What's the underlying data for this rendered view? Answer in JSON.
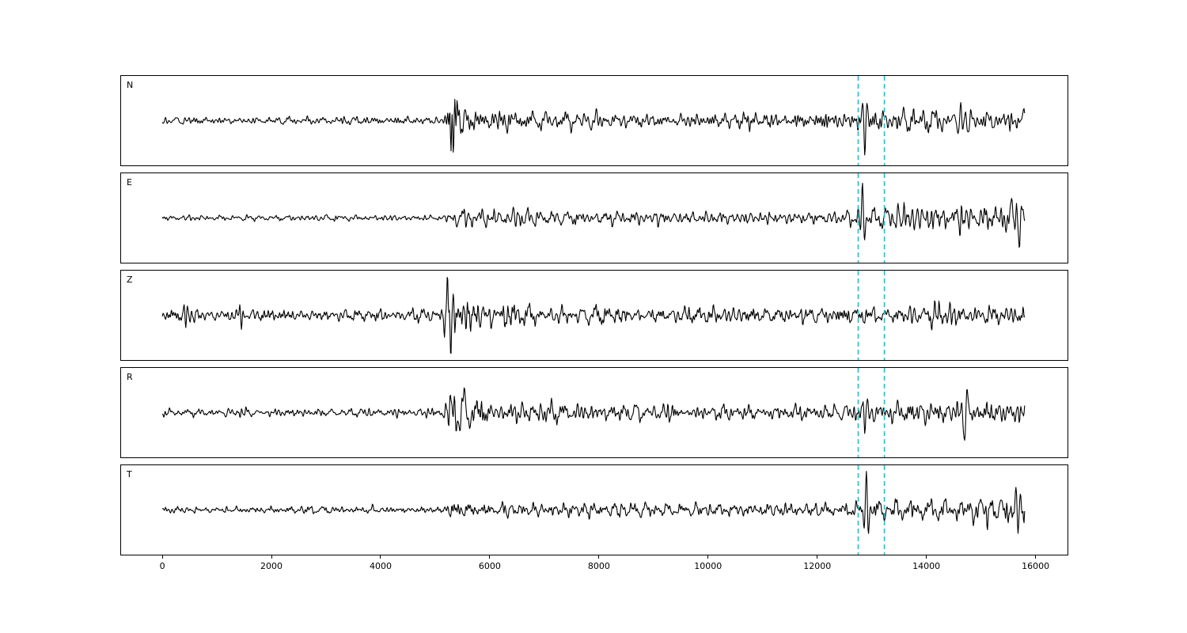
{
  "figure": {
    "background": "#ffffff",
    "trace_color": "#000000",
    "frame_color": "#000000",
    "window_line_color": "#26bdc7",
    "tick_color": "#000000"
  },
  "chart_data": {
    "type": "line",
    "title": "",
    "xlabel": "",
    "ylabel": "",
    "grid": false,
    "legend": null,
    "xlim": [
      -770,
      16600
    ],
    "x_start": 0,
    "x_end": 15800,
    "sample_step": 10,
    "xticks": [
      {
        "value": 0,
        "label": "0"
      },
      {
        "value": 2000,
        "label": "2000"
      },
      {
        "value": 4000,
        "label": "4000"
      },
      {
        "value": 6000,
        "label": "6000"
      },
      {
        "value": 8000,
        "label": "8000"
      },
      {
        "value": 10000,
        "label": "10000"
      },
      {
        "value": 12000,
        "label": "12000"
      },
      {
        "value": 14000,
        "label": "14000"
      },
      {
        "value": 16000,
        "label": "16000"
      }
    ],
    "vlines": [
      12750,
      13230
    ],
    "vline_style": "dashed",
    "panels": [
      {
        "label": "N",
        "seed": 101,
        "envelope": [
          [
            0,
            5
          ],
          [
            5000,
            5
          ],
          [
            5200,
            6
          ],
          [
            5270,
            45
          ],
          [
            5500,
            26
          ],
          [
            6000,
            14
          ],
          [
            7000,
            12
          ],
          [
            9000,
            10
          ],
          [
            12400,
            10
          ],
          [
            12800,
            13
          ],
          [
            13400,
            14
          ],
          [
            14500,
            18
          ],
          [
            15000,
            17
          ],
          [
            15800,
            15
          ]
        ],
        "spikes": [
          [
            12870,
            -40,
            55
          ],
          [
            14630,
            28,
            70
          ],
          [
            14760,
            -30,
            70
          ]
        ]
      },
      {
        "label": "E",
        "seed": 202,
        "envelope": [
          [
            0,
            4
          ],
          [
            5100,
            4
          ],
          [
            5250,
            5
          ],
          [
            5330,
            17
          ],
          [
            5700,
            12
          ],
          [
            7000,
            10
          ],
          [
            9000,
            9
          ],
          [
            12400,
            8
          ],
          [
            12900,
            12
          ],
          [
            13400,
            17
          ],
          [
            14500,
            20
          ],
          [
            15800,
            22
          ]
        ],
        "spikes": [
          [
            12830,
            46,
            50
          ],
          [
            15560,
            26,
            60
          ],
          [
            15700,
            -28,
            60
          ]
        ]
      },
      {
        "label": "Z",
        "seed": 303,
        "envelope": [
          [
            0,
            8
          ],
          [
            5100,
            8
          ],
          [
            5230,
            55
          ],
          [
            5600,
            26
          ],
          [
            6200,
            16
          ],
          [
            7500,
            12
          ],
          [
            9000,
            11
          ],
          [
            12500,
            11
          ],
          [
            13500,
            13
          ],
          [
            15800,
            15
          ]
        ],
        "spikes": [
          [
            430,
            -18,
            45
          ],
          [
            1450,
            -17,
            40
          ],
          [
            5290,
            -30,
            60
          ]
        ]
      },
      {
        "label": "R",
        "seed": 404,
        "envelope": [
          [
            0,
            6
          ],
          [
            5100,
            6
          ],
          [
            5250,
            48
          ],
          [
            5600,
            26
          ],
          [
            6200,
            15
          ],
          [
            8000,
            13
          ],
          [
            10000,
            11
          ],
          [
            12500,
            11
          ],
          [
            13200,
            15
          ],
          [
            14500,
            18
          ],
          [
            15800,
            16
          ]
        ],
        "spikes": [
          [
            12870,
            -28,
            55
          ],
          [
            14700,
            -30,
            80
          ]
        ]
      },
      {
        "label": "T",
        "seed": 505,
        "envelope": [
          [
            0,
            5
          ],
          [
            5150,
            5
          ],
          [
            5320,
            15
          ],
          [
            6000,
            11
          ],
          [
            8000,
            10
          ],
          [
            12500,
            9
          ],
          [
            13100,
            14
          ],
          [
            13800,
            17
          ],
          [
            15000,
            18
          ],
          [
            15800,
            20
          ]
        ],
        "spikes": [
          [
            12900,
            46,
            50
          ],
          [
            15680,
            -26,
            60
          ]
        ]
      }
    ]
  }
}
